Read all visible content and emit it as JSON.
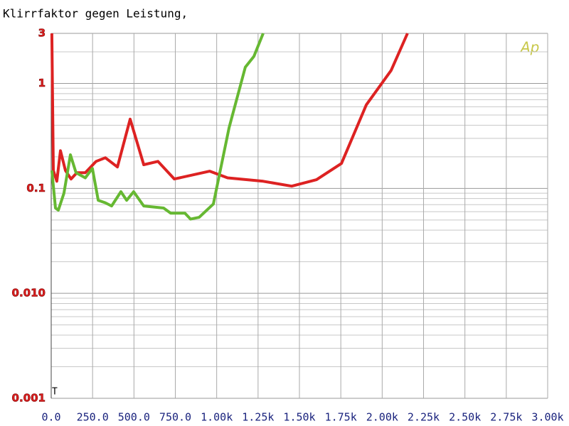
{
  "chart_data": {
    "type": "line",
    "title": "Klirrfaktor gegen Leistung,",
    "logo": "Ap",
    "marker": "T",
    "log_y": true,
    "grid": true,
    "xlim": [
      0,
      3000
    ],
    "ylim": [
      0.001,
      3
    ],
    "xticks": [
      {
        "value": 0,
        "label": "0.0"
      },
      {
        "value": 250,
        "label": "250.0"
      },
      {
        "value": 500,
        "label": "500.0"
      },
      {
        "value": 750,
        "label": "750.0"
      },
      {
        "value": 1000,
        "label": "1.00k"
      },
      {
        "value": 1250,
        "label": "1.25k"
      },
      {
        "value": 1500,
        "label": "1.50k"
      },
      {
        "value": 1750,
        "label": "1.75k"
      },
      {
        "value": 2000,
        "label": "2.00k"
      },
      {
        "value": 2250,
        "label": "2.25k"
      },
      {
        "value": 2500,
        "label": "2.50k"
      },
      {
        "value": 2750,
        "label": "2.75k"
      },
      {
        "value": 3000,
        "label": "3.00k"
      }
    ],
    "yticks": [
      3,
      1,
      0.1,
      {
        "value": 0.01,
        "label": "0.010"
      },
      {
        "value": 0.001,
        "label": "0.001"
      }
    ],
    "series": [
      {
        "color": "#dd2222",
        "x": [
          4,
          13,
          34,
          56,
          86,
          120,
          155,
          206,
          271,
          327,
          400,
          477,
          559,
          645,
          744,
          958,
          1066,
          1281,
          1453,
          1603,
          1754,
          1904,
          2054,
          2153
        ],
        "values": [
          3,
          0.148,
          0.117,
          0.229,
          0.148,
          0.123,
          0.141,
          0.141,
          0.181,
          0.196,
          0.16,
          0.457,
          0.168,
          0.181,
          0.123,
          0.146,
          0.126,
          0.117,
          0.105,
          0.121,
          0.173,
          0.625,
          1.33,
          3
        ]
      },
      {
        "color": "#66b832",
        "x": [
          4,
          26,
          43,
          77,
          116,
          150,
          206,
          249,
          284,
          327,
          365,
          421,
          456,
          498,
          559,
          679,
          722,
          808,
          842,
          894,
          980,
          1075,
          1173,
          1225,
          1281
        ],
        "values": [
          0.148,
          0.065,
          0.062,
          0.09,
          0.209,
          0.141,
          0.126,
          0.155,
          0.077,
          0.073,
          0.068,
          0.093,
          0.077,
          0.093,
          0.068,
          0.065,
          0.058,
          0.058,
          0.051,
          0.053,
          0.071,
          0.379,
          1.43,
          1.81,
          3
        ]
      }
    ]
  }
}
